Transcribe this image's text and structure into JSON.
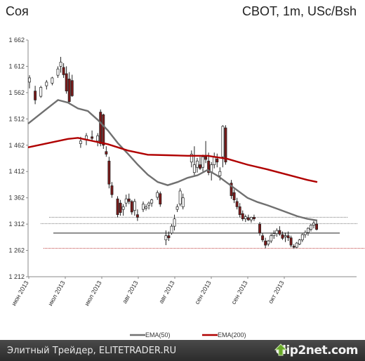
{
  "chart_data": {
    "type": "candlestick",
    "title": "Соя",
    "subtitle": "CBOT, 1m, USc/Bsh",
    "ylim": [
      1212,
      1662
    ],
    "yticks": [
      "1 212",
      "1 262",
      "1 312",
      "1 362",
      "1 412",
      "1 462",
      "1 512",
      "1 562",
      "1 612",
      "1 662"
    ],
    "xticks": [
      "июн 2013",
      "июл 2013",
      "июл 2013",
      "авг 2013",
      "авг 2013",
      "сен 2013",
      "сен 2013",
      "окт 2013"
    ],
    "grid": false,
    "legend_position": "bottom-center",
    "series": [
      {
        "name": "EMA(50)",
        "color": "#707070",
        "points": [
          [
            0,
            1503
          ],
          [
            5,
            1518
          ],
          [
            10,
            1533
          ],
          [
            15,
            1548
          ],
          [
            20,
            1543
          ],
          [
            25,
            1532
          ],
          [
            30,
            1527
          ],
          [
            35,
            1510
          ],
          [
            40,
            1490
          ],
          [
            45,
            1466
          ],
          [
            50,
            1446
          ],
          [
            55,
            1425
          ],
          [
            60,
            1406
          ],
          [
            65,
            1392
          ],
          [
            70,
            1386
          ],
          [
            75,
            1392
          ],
          [
            80,
            1400
          ],
          [
            85,
            1405
          ],
          [
            90,
            1415
          ],
          [
            95,
            1404
          ],
          [
            100,
            1390
          ],
          [
            105,
            1376
          ],
          [
            110,
            1362
          ],
          [
            115,
            1354
          ],
          [
            120,
            1348
          ],
          [
            125,
            1341
          ],
          [
            130,
            1334
          ],
          [
            135,
            1327
          ],
          [
            140,
            1322
          ],
          [
            145,
            1319
          ]
        ]
      },
      {
        "name": "EMA(200)",
        "color": "#b00000",
        "points": [
          [
            0,
            1458
          ],
          [
            10,
            1466
          ],
          [
            20,
            1474
          ],
          [
            25,
            1476
          ],
          [
            30,
            1472
          ],
          [
            40,
            1464
          ],
          [
            50,
            1452
          ],
          [
            60,
            1444
          ],
          [
            70,
            1443
          ],
          [
            80,
            1442
          ],
          [
            90,
            1442
          ],
          [
            100,
            1436
          ],
          [
            110,
            1425
          ],
          [
            120,
            1416
          ],
          [
            130,
            1406
          ],
          [
            140,
            1396
          ],
          [
            145,
            1392
          ]
        ]
      }
    ],
    "ohlc": [
      [
        0,
        1582,
        1595,
        1570,
        1590
      ],
      [
        2,
        1565,
        1575,
        1540,
        1548
      ],
      [
        4,
        1555,
        1575,
        1552,
        1572
      ],
      [
        6,
        1575,
        1586,
        1568,
        1582
      ],
      [
        8,
        1580,
        1592,
        1576,
        1590
      ],
      [
        10,
        1595,
        1612,
        1590,
        1607
      ],
      [
        11,
        1612,
        1630,
        1600,
        1620
      ],
      [
        12,
        1610,
        1618,
        1590,
        1596
      ],
      [
        13,
        1598,
        1612,
        1560,
        1565
      ],
      [
        14,
        1588,
        1601,
        1540,
        1545
      ],
      [
        15,
        1585,
        1596,
        1554,
        1556
      ],
      [
        18,
        1465,
        1478,
        1457,
        1470
      ],
      [
        20,
        1472,
        1485,
        1462,
        1480
      ],
      [
        22,
        1478,
        1490,
        1470,
        1475
      ],
      [
        24,
        1470,
        1485,
        1460,
        1480
      ],
      [
        25,
        1525,
        1530,
        1460,
        1465
      ],
      [
        26,
        1520,
        1522,
        1455,
        1462
      ],
      [
        27,
        1450,
        1460,
        1440,
        1445
      ],
      [
        28,
        1432,
        1440,
        1380,
        1388
      ],
      [
        29,
        1385,
        1392,
        1362,
        1368
      ],
      [
        31,
        1360,
        1365,
        1325,
        1330
      ],
      [
        32,
        1352,
        1358,
        1328,
        1334
      ],
      [
        33,
        1340,
        1350,
        1328,
        1345
      ],
      [
        34,
        1352,
        1368,
        1345,
        1360
      ],
      [
        35,
        1360,
        1370,
        1350,
        1355
      ],
      [
        36,
        1355,
        1358,
        1330,
        1335
      ],
      [
        37,
        1338,
        1360,
        1328,
        1355
      ],
      [
        38,
        1330,
        1340,
        1318,
        1325
      ],
      [
        40,
        1340,
        1355,
        1335,
        1350
      ],
      [
        41,
        1342,
        1350,
        1338,
        1345
      ],
      [
        42,
        1348,
        1355,
        1340,
        1352
      ],
      [
        43,
        1352,
        1360,
        1345,
        1358
      ],
      [
        45,
        1363,
        1376,
        1358,
        1372
      ],
      [
        46,
        1370,
        1374,
        1345,
        1350
      ],
      [
        48,
        1282,
        1300,
        1272,
        1290
      ],
      [
        49,
        1290,
        1298,
        1280,
        1286
      ],
      [
        50,
        1295,
        1312,
        1292,
        1308
      ],
      [
        51,
        1308,
        1330,
        1300,
        1322
      ],
      [
        52,
        1340,
        1350,
        1335,
        1345
      ],
      [
        53,
        1350,
        1380,
        1346,
        1375
      ],
      [
        54,
        1345,
        1370,
        1340,
        1362
      ],
      [
        57,
        1430,
        1452,
        1420,
        1445
      ],
      [
        58,
        1410,
        1460,
        1405,
        1425
      ],
      [
        59,
        1420,
        1438,
        1410,
        1432
      ],
      [
        60,
        1425,
        1440,
        1415,
        1418
      ],
      [
        61,
        1420,
        1444,
        1412,
        1440
      ],
      [
        62,
        1440,
        1470,
        1428,
        1435
      ],
      [
        63,
        1432,
        1448,
        1405,
        1410
      ],
      [
        64,
        1410,
        1430,
        1395,
        1425
      ],
      [
        65,
        1425,
        1448,
        1418,
        1440
      ],
      [
        66,
        1436,
        1446,
        1420,
        1430
      ],
      [
        67,
        1404,
        1420,
        1395,
        1412
      ],
      [
        68,
        1440,
        1500,
        1420,
        1498
      ],
      [
        69,
        1495,
        1500,
        1425,
        1430
      ],
      [
        71,
        1390,
        1396,
        1360,
        1366
      ],
      [
        72,
        1372,
        1378,
        1352,
        1358
      ],
      [
        73,
        1355,
        1362,
        1340,
        1345
      ],
      [
        74,
        1345,
        1352,
        1325,
        1330
      ],
      [
        75,
        1332,
        1338,
        1318,
        1322
      ],
      [
        76,
        1322,
        1330,
        1316,
        1326
      ],
      [
        77,
        1324,
        1330,
        1318,
        1320
      ],
      [
        78,
        1320,
        1326,
        1315,
        1325
      ],
      [
        79,
        1325,
        1330,
        1318,
        1322
      ],
      [
        81,
        1312,
        1316,
        1290,
        1295
      ],
      [
        82,
        1290,
        1295,
        1278,
        1282
      ],
      [
        83,
        1280,
        1286,
        1266,
        1272
      ],
      [
        84,
        1274,
        1282,
        1270,
        1280
      ],
      [
        85,
        1280,
        1294,
        1276,
        1290
      ],
      [
        86,
        1290,
        1300,
        1284,
        1294
      ],
      [
        87,
        1294,
        1304,
        1288,
        1300
      ],
      [
        88,
        1300,
        1308,
        1290,
        1293
      ],
      [
        89,
        1292,
        1298,
        1282,
        1285
      ],
      [
        90,
        1288,
        1296,
        1278,
        1290
      ],
      [
        91,
        1290,
        1298,
        1280,
        1286
      ],
      [
        92,
        1286,
        1290,
        1268,
        1272
      ],
      [
        93,
        1270,
        1274,
        1265,
        1268
      ],
      [
        94,
        1268,
        1278,
        1266,
        1276
      ],
      [
        95,
        1274,
        1284,
        1272,
        1282
      ],
      [
        96,
        1282,
        1294,
        1278,
        1292
      ],
      [
        97,
        1292,
        1300,
        1286,
        1296
      ],
      [
        98,
        1296,
        1306,
        1290,
        1304
      ],
      [
        99,
        1302,
        1312,
        1298,
        1310
      ],
      [
        100,
        1310,
        1318,
        1304,
        1314
      ],
      [
        101,
        1312,
        1320,
        1300,
        1302
      ]
    ],
    "hlines": [
      {
        "y": 1325,
        "color": "#777777",
        "style": "dotted"
      },
      {
        "y": 1313,
        "color": "#777777",
        "style": "dotted"
      },
      {
        "y": 1295,
        "color": "#222222",
        "style": "solid"
      },
      {
        "y": 1266,
        "color": "#c04040",
        "style": "dotted"
      }
    ]
  },
  "footer": {
    "text": "Элитный Трейдер, ELITETRADER.RU",
    "brand": "clip2net.com"
  },
  "colors": {
    "up_candle": "#ffffff",
    "down_candle": "#7a1a1a",
    "footer_bg": "#3a3a3a",
    "brand_icon": "#6aaa2a"
  }
}
